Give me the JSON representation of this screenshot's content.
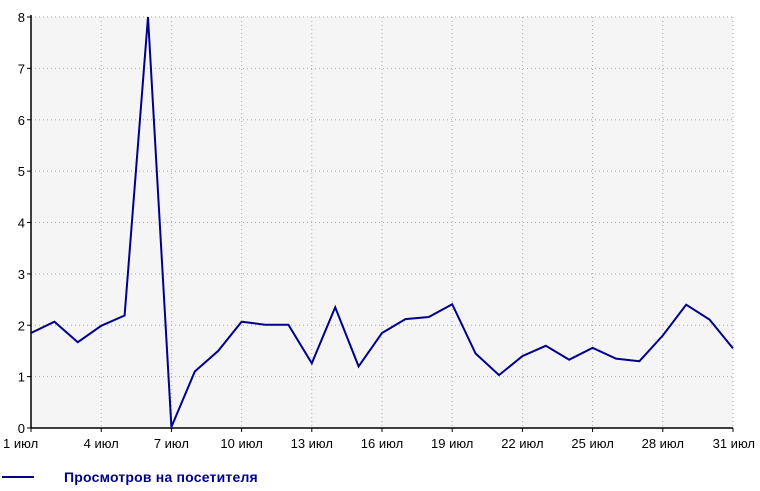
{
  "chart_data": {
    "type": "line",
    "x": [
      "1 июл",
      "2 июл",
      "3 июл",
      "4 июл",
      "5 июл",
      "6 июл",
      "7 июл",
      "8 июл",
      "9 июл",
      "10 июл",
      "11 июл",
      "12 июл",
      "13 июл",
      "14 июл",
      "15 июл",
      "16 июл",
      "17 июл",
      "18 июл",
      "19 июл",
      "20 июл",
      "21 июл",
      "22 июл",
      "23 июл",
      "24 июл",
      "25 июл",
      "26 июл",
      "27 июл",
      "28 июл",
      "29 июл",
      "30 июл",
      "31 июл"
    ],
    "x_tick_labels": [
      "1 июл",
      "4 июл",
      "7 июл",
      "10 июл",
      "13 июл",
      "16 июл",
      "19 июл",
      "22 июл",
      "25 июл",
      "28 июл",
      "31 июл"
    ],
    "y_ticks": [
      "0",
      "1",
      "2",
      "3",
      "4",
      "5",
      "6",
      "7",
      "8"
    ],
    "ylim": [
      0,
      8
    ],
    "grid": true,
    "legend_position": "bottom-left",
    "series": [
      {
        "name": "Просмотров на посетителя",
        "color": "#00008b",
        "values": [
          1.85,
          2.07,
          1.67,
          1.99,
          2.19,
          8.0,
          0.02,
          1.1,
          1.5,
          2.07,
          2.01,
          2.01,
          1.26,
          2.35,
          1.2,
          1.85,
          2.12,
          2.16,
          2.41,
          1.45,
          1.03,
          1.4,
          1.6,
          1.33,
          1.56,
          1.35,
          1.3,
          1.8,
          2.4,
          2.11,
          1.55
        ]
      }
    ],
    "plot_background": "#f5f5f5",
    "grid_color": "#aaaaaa",
    "axis_color": "#000000"
  }
}
